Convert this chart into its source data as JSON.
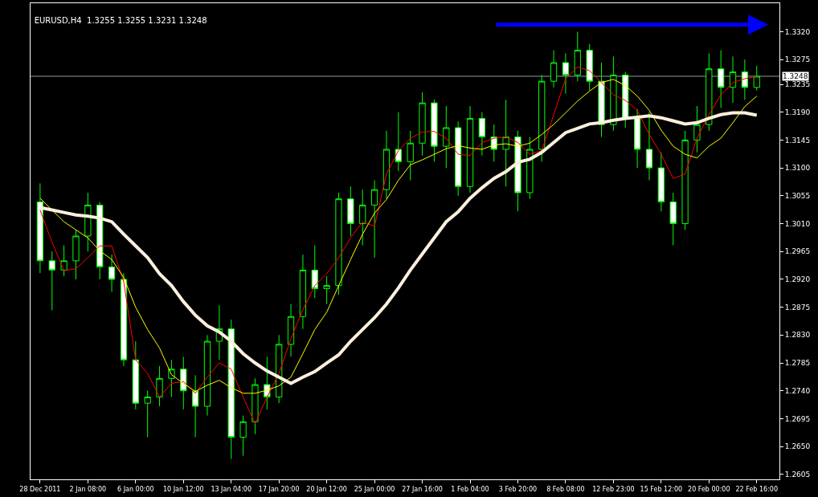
{
  "chart_data": {
    "type": "candlestick",
    "title": "EURUSD,H4  1.3255 1.3255 1.3231 1.3248",
    "categories": [
      "28 Dec 2011",
      null,
      null,
      null,
      "2 Jan 08:00",
      null,
      null,
      null,
      "6 Jan 00:00",
      null,
      null,
      null,
      "10 Jan 12:00",
      null,
      null,
      null,
      "13 Jan 04:00",
      null,
      null,
      null,
      "17 Jan 20:00",
      null,
      null,
      null,
      "20 Jan 12:00",
      null,
      null,
      null,
      "25 Jan 00:00",
      null,
      null,
      null,
      "27 Jan 16:00",
      null,
      null,
      null,
      "1 Feb 04:00",
      null,
      null,
      null,
      "3 Feb 20:00",
      null,
      null,
      null,
      "8 Feb 08:00",
      null,
      null,
      null,
      "12 Feb 23:00",
      null,
      null,
      null,
      "15 Feb 12:00",
      null,
      null,
      null,
      "20 Feb 00:00",
      null,
      null,
      null,
      "22 Feb 16:00"
    ],
    "color": "#00ff00",
    "ohlc": [
      [
        1.3045,
        1.3075,
        1.293,
        1.295
      ],
      [
        1.295,
        1.2965,
        1.287,
        1.2935
      ],
      [
        1.2935,
        1.2975,
        1.2925,
        1.295
      ],
      [
        1.295,
        1.3,
        1.292,
        1.299
      ],
      [
        1.299,
        1.306,
        1.2965,
        1.304
      ],
      [
        1.304,
        1.3045,
        1.292,
        1.294
      ],
      [
        1.294,
        1.296,
        1.29,
        1.292
      ],
      [
        1.292,
        1.293,
        1.278,
        1.279
      ],
      [
        1.279,
        1.282,
        1.271,
        1.272
      ],
      [
        1.272,
        1.274,
        1.2665,
        1.273
      ],
      [
        1.273,
        1.278,
        1.2715,
        1.276
      ],
      [
        1.276,
        1.279,
        1.273,
        1.2775
      ],
      [
        1.2775,
        1.2795,
        1.271,
        1.274
      ],
      [
        1.274,
        1.2765,
        1.2665,
        1.2715
      ],
      [
        1.2715,
        1.283,
        1.27,
        1.282
      ],
      [
        1.282,
        1.2878,
        1.279,
        1.284
      ],
      [
        1.284,
        1.2855,
        1.263,
        1.2665
      ],
      [
        1.2665,
        1.27,
        1.2635,
        1.269
      ],
      [
        1.269,
        1.276,
        1.267,
        1.275
      ],
      [
        1.275,
        1.2795,
        1.271,
        1.273
      ],
      [
        1.273,
        1.283,
        1.272,
        1.2815
      ],
      [
        1.2815,
        1.288,
        1.2795,
        1.286
      ],
      [
        1.286,
        1.296,
        1.284,
        1.2935
      ],
      [
        1.2935,
        1.2975,
        1.289,
        1.2905
      ],
      [
        1.2905,
        1.2925,
        1.288,
        1.291
      ],
      [
        1.291,
        1.306,
        1.2895,
        1.305
      ],
      [
        1.305,
        1.307,
        1.299,
        1.301
      ],
      [
        1.301,
        1.3065,
        1.2975,
        1.304
      ],
      [
        1.304,
        1.308,
        1.2955,
        1.3065
      ],
      [
        1.3065,
        1.316,
        1.305,
        1.313
      ],
      [
        1.313,
        1.319,
        1.3095,
        1.311
      ],
      [
        1.311,
        1.316,
        1.308,
        1.314
      ],
      [
        1.314,
        1.3222,
        1.312,
        1.3205
      ],
      [
        1.3205,
        1.321,
        1.311,
        1.3135
      ],
      [
        1.3135,
        1.32,
        1.31,
        1.3165
      ],
      [
        1.3165,
        1.3175,
        1.3055,
        1.307
      ],
      [
        1.307,
        1.32,
        1.306,
        1.318
      ],
      [
        1.318,
        1.319,
        1.312,
        1.315
      ],
      [
        1.315,
        1.317,
        1.311,
        1.313
      ],
      [
        1.313,
        1.321,
        1.307,
        1.315
      ],
      [
        1.315,
        1.316,
        1.303,
        1.306
      ],
      [
        1.306,
        1.315,
        1.305,
        1.313
      ],
      [
        1.313,
        1.325,
        1.311,
        1.324
      ],
      [
        1.324,
        1.329,
        1.323,
        1.327
      ],
      [
        1.327,
        1.3285,
        1.322,
        1.325
      ],
      [
        1.325,
        1.332,
        1.324,
        1.329
      ],
      [
        1.329,
        1.33,
        1.3225,
        1.324
      ],
      [
        1.324,
        1.327,
        1.315,
        1.317
      ],
      [
        1.317,
        1.328,
        1.316,
        1.325
      ],
      [
        1.325,
        1.3255,
        1.3165,
        1.318
      ],
      [
        1.318,
        1.3195,
        1.31,
        1.313
      ],
      [
        1.313,
        1.319,
        1.308,
        1.31
      ],
      [
        1.31,
        1.3125,
        1.303,
        1.3045
      ],
      [
        1.3045,
        1.306,
        1.2975,
        1.301
      ],
      [
        1.301,
        1.316,
        1.3,
        1.3145
      ],
      [
        1.3145,
        1.32,
        1.3125,
        1.317
      ],
      [
        1.317,
        1.3285,
        1.316,
        1.326
      ],
      [
        1.326,
        1.329,
        1.3197,
        1.323
      ],
      [
        1.323,
        1.328,
        1.3205,
        1.3255
      ],
      [
        1.3255,
        1.3275,
        1.321,
        1.323
      ],
      [
        1.323,
        1.3265,
        1.3225,
        1.3248
      ]
    ],
    "series": [
      {
        "type": "line",
        "color": "#ff0000",
        "values": [
          1.3032,
          1.298,
          1.2934,
          1.2937,
          1.2955,
          1.2974,
          1.2974,
          1.2916,
          1.279,
          1.2768,
          1.273,
          1.2752,
          1.2755,
          1.2736,
          1.2762,
          1.2785,
          1.2775,
          1.273,
          1.2687,
          1.273,
          1.2768,
          1.2824,
          1.2871,
          1.291,
          1.2929,
          1.2955,
          1.2987,
          1.3013,
          1.3006,
          1.309,
          1.3128,
          1.3148,
          1.3158,
          1.3159,
          1.3148,
          1.3122,
          1.312,
          1.3141,
          1.3148,
          1.315,
          1.3141,
          1.3122,
          1.3128,
          1.3186,
          1.3244,
          1.3263,
          1.3257,
          1.3238,
          1.3218,
          1.3209,
          1.3193,
          1.3154,
          1.3122,
          1.3083,
          1.309,
          1.3148,
          1.3186,
          1.3218,
          1.3238,
          1.3244,
          1.3248
        ]
      },
      {
        "type": "line",
        "color": "#ffff00",
        "values": [
          1.3051,
          1.3032,
          1.3013,
          1.3,
          1.2987,
          1.2966,
          1.2952,
          1.2923,
          1.2875,
          1.2839,
          1.2809,
          1.2766,
          1.2752,
          1.2739,
          1.2749,
          1.2757,
          1.2745,
          1.2736,
          1.2736,
          1.2741,
          1.2748,
          1.2762,
          1.28,
          1.2839,
          1.2867,
          1.291,
          1.2952,
          1.2993,
          1.3027,
          1.3049,
          1.308,
          1.3105,
          1.3113,
          1.3122,
          1.3131,
          1.3136,
          1.3132,
          1.313,
          1.3137,
          1.3139,
          1.3135,
          1.314,
          1.3154,
          1.317,
          1.3189,
          1.3208,
          1.3224,
          1.3238,
          1.3243,
          1.3233,
          1.3216,
          1.3193,
          1.3161,
          1.3135,
          1.3122,
          1.3116,
          1.3135,
          1.3148,
          1.3173,
          1.3199,
          1.3216
        ]
      },
      {
        "type": "line",
        "color": "#fdf0dc",
        "values": [
          1.3036,
          1.3032,
          1.3028,
          1.3024,
          1.3022,
          1.3019,
          1.3013,
          1.2993,
          1.2974,
          1.2955,
          1.2929,
          1.291,
          1.2884,
          1.2862,
          1.2845,
          1.2835,
          1.282,
          1.28,
          1.2785,
          1.2772,
          1.2762,
          1.2752,
          1.2762,
          1.2771,
          1.2785,
          1.2798,
          1.282,
          1.2839,
          1.2858,
          1.288,
          1.2906,
          1.2935,
          1.2961,
          1.2987,
          1.3013,
          1.3029,
          1.3051,
          1.3068,
          1.3083,
          1.3094,
          1.3109,
          1.3114,
          1.3125,
          1.3141,
          1.3157,
          1.3164,
          1.3171,
          1.3173,
          1.3177,
          1.318,
          1.3182,
          1.3184,
          1.3181,
          1.3176,
          1.3171,
          1.3173,
          1.318,
          1.3186,
          1.3189,
          1.3189,
          1.3185
        ]
      }
    ],
    "ylim": [
      1.2597,
      1.3366
    ],
    "yticks": [
      {
        "value": 1.2605,
        "label": "1.2605"
      },
      {
        "value": 1.265,
        "label": "1.2650"
      },
      {
        "value": 1.2695,
        "label": "1.2695"
      },
      {
        "value": 1.274,
        "label": "1.2740"
      },
      {
        "value": 1.2785,
        "label": "1.2785"
      },
      {
        "value": 1.283,
        "label": "1.2830"
      },
      {
        "value": 1.2875,
        "label": "1.2875"
      },
      {
        "value": 1.292,
        "label": "1.2920"
      },
      {
        "value": 1.2965,
        "label": "1.2965"
      },
      {
        "value": 1.301,
        "label": "1.3010"
      },
      {
        "value": 1.3055,
        "label": "1.3055"
      },
      {
        "value": 1.31,
        "label": "1.3100"
      },
      {
        "value": 1.3145,
        "label": "1.3145"
      },
      {
        "value": 1.319,
        "label": "1.3190"
      },
      {
        "value": 1.3235,
        "label": "1.3235"
      },
      {
        "value": 1.3275,
        "label": "1.3275"
      },
      {
        "value": 1.332,
        "label": "1.3320"
      }
    ],
    "ref_lines": [
      {
        "axis": "y",
        "value": 1.3248,
        "label": "1.3248",
        "color": "#8c9ca8"
      }
    ]
  }
}
